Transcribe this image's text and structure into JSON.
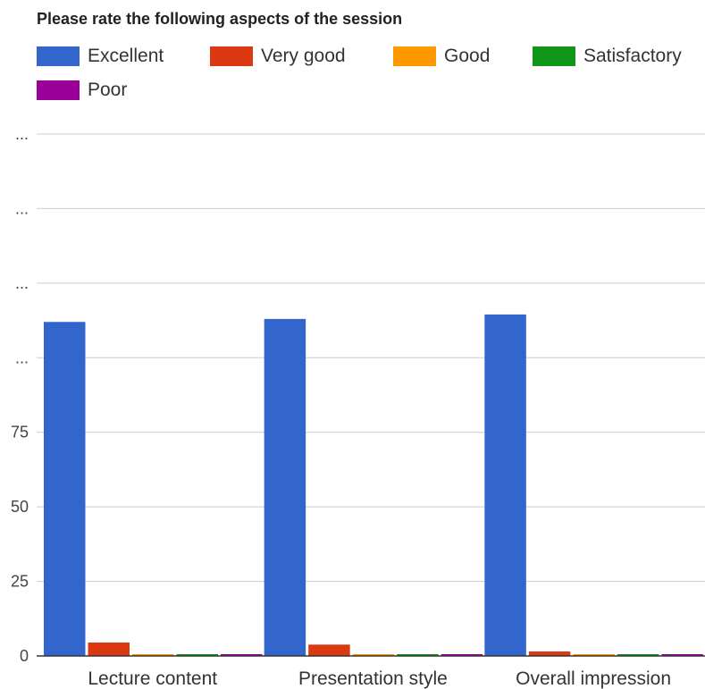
{
  "chart_data": {
    "type": "bar",
    "title": "Please rate the following aspects of the session",
    "categories": [
      "Lecture content",
      "Presentation style",
      "Overall impression"
    ],
    "series": [
      {
        "name": "Excellent",
        "color": "#3366cc",
        "values": [
          112,
          113,
          114.5
        ]
      },
      {
        "name": "Very good",
        "color": "#dc3912",
        "values": [
          4.5,
          3.8,
          1.5
        ]
      },
      {
        "name": "Good",
        "color": "#ff9900",
        "values": [
          0,
          0,
          0
        ]
      },
      {
        "name": "Satisfactory",
        "color": "#109618",
        "values": [
          0,
          0,
          0
        ]
      },
      {
        "name": "Poor",
        "color": "#990099",
        "values": [
          0,
          0,
          0
        ]
      }
    ],
    "yticks": [
      {
        "value": 0,
        "label": "0"
      },
      {
        "value": 25,
        "label": "25"
      },
      {
        "value": 50,
        "label": "50"
      },
      {
        "value": 75,
        "label": "75"
      },
      {
        "value": 100,
        "label": "..."
      },
      {
        "value": 125,
        "label": "..."
      },
      {
        "value": 150,
        "label": "..."
      },
      {
        "value": 175,
        "label": "..."
      }
    ],
    "ylim": [
      0,
      175
    ],
    "xlabel": "",
    "ylabel": "",
    "grid": true,
    "legend_position": "top"
  }
}
